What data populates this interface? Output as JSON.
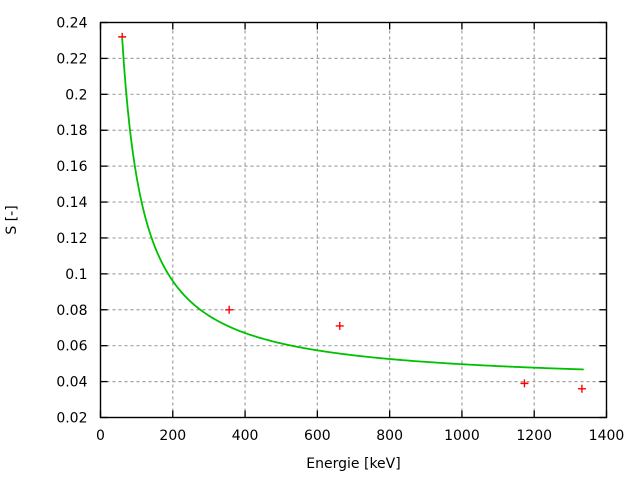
{
  "window": {
    "background": "#ffffff"
  },
  "chart_data": {
    "type": "scatter",
    "title": "",
    "xlabel": "Energie [keV]",
    "ylabel": "S [-]",
    "xlim": [
      0,
      1400
    ],
    "ylim": [
      0.02,
      0.24
    ],
    "xticks": {
      "values": [
        0,
        200,
        400,
        600,
        800,
        1000,
        1200,
        1400
      ],
      "labels": [
        "0",
        "200",
        "400",
        "600",
        "800",
        "1000",
        "1200",
        "1400"
      ]
    },
    "yticks": {
      "values": [
        0.02,
        0.04,
        0.06,
        0.08,
        0.1,
        0.12,
        0.14,
        0.16,
        0.18,
        0.2,
        0.22,
        0.24
      ],
      "labels": [
        "0.02",
        "0.04",
        "0.06",
        "0.08",
        "0.1",
        "0.12",
        "0.14",
        "0.16",
        "0.18",
        "0.2",
        "0.22",
        "0.24"
      ]
    },
    "grid": {
      "show": true,
      "color": "#a0a0a0",
      "dash": "3,3"
    },
    "legend": {
      "show": false
    },
    "axis_color": "#000000",
    "text_color": "#000000",
    "series": [
      {
        "name": "measured-points",
        "type": "scatter",
        "marker": "plus",
        "color": "#ff0000",
        "marker_half_size": 4,
        "points": [
          {
            "x": 60,
            "y": 0.232
          },
          {
            "x": 356,
            "y": 0.08
          },
          {
            "x": 662,
            "y": 0.071
          },
          {
            "x": 1173,
            "y": 0.039
          },
          {
            "x": 1332,
            "y": 0.036
          }
        ]
      },
      {
        "name": "fit-curve",
        "type": "function-line",
        "color": "#00c000",
        "function": {
          "form": "a/x + c",
          "a": 11.58,
          "c": 0.0381
        },
        "x_start": 60,
        "x_end": 1335
      }
    ]
  }
}
